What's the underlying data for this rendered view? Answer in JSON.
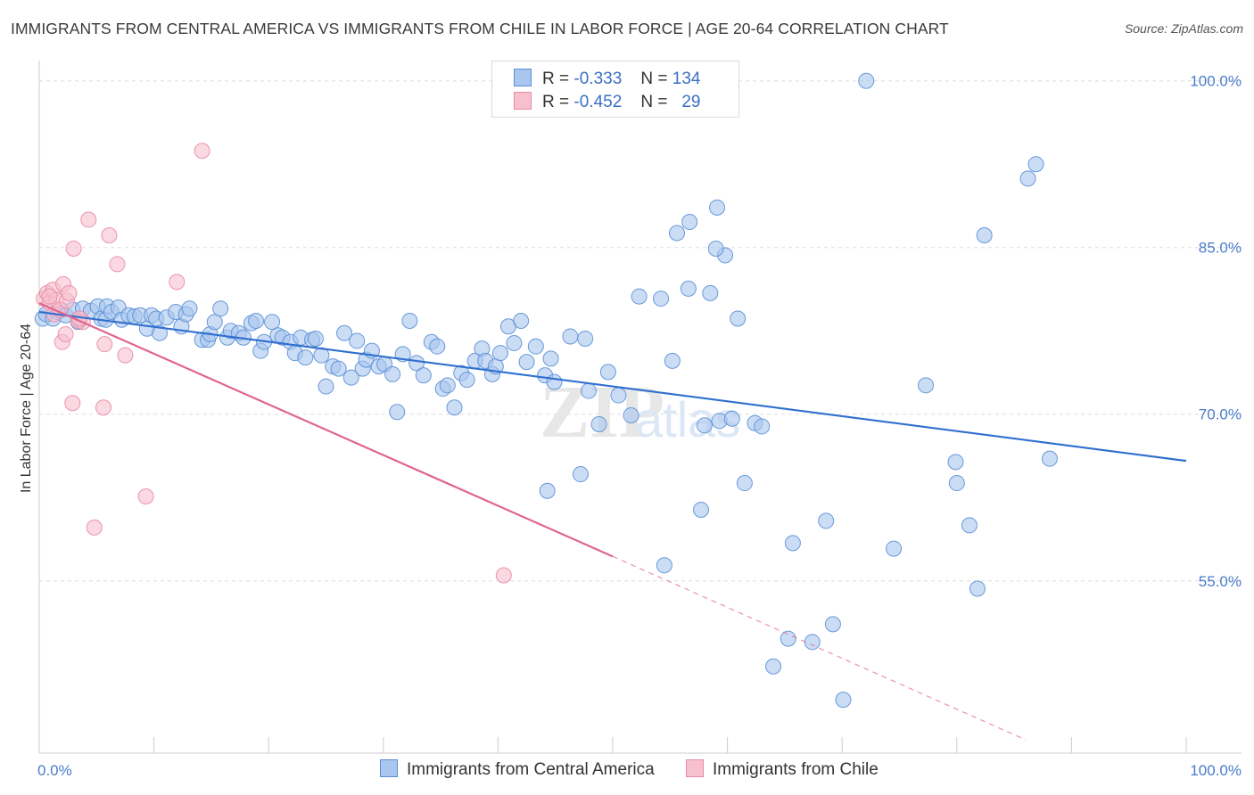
{
  "title": "IMMIGRANTS FROM CENTRAL AMERICA VS IMMIGRANTS FROM CHILE IN LABOR FORCE | AGE 20-64 CORRELATION CHART",
  "source": "Source: ZipAtlas.com",
  "watermark": "ZIPatlas",
  "legend_top": {
    "rows": [
      {
        "r_label": "R =",
        "r_value": "-0.333",
        "n_label": "N =",
        "n_value": "134",
        "color": "#a9c6ef",
        "stroke": "#5b8fd6"
      },
      {
        "r_label": "R =",
        "r_value": "-0.452",
        "n_label": "N =",
        "n_value": "29",
        "color": "#f7c0cf",
        "stroke": "#e88aa6"
      }
    ]
  },
  "legend_bottom": [
    {
      "label": "Immigrants from Central America",
      "color": "#a9c6ef",
      "stroke": "#5b8fd6"
    },
    {
      "label": "Immigrants from Chile",
      "color": "#f7c0cf",
      "stroke": "#e88aa6"
    }
  ],
  "chart_data": {
    "type": "scatter",
    "title": "IMMIGRANTS FROM CENTRAL AMERICA VS IMMIGRANTS FROM CHILE IN LABOR FORCE | AGE 20-64 CORRELATION CHART",
    "xlabel": "",
    "ylabel": "In Labor Force | Age 20-64",
    "xlim": [
      0,
      100
    ],
    "ylim": [
      39.5,
      101.5
    ],
    "x_tick_labels": [
      "0.0%",
      "100.0%"
    ],
    "y_ticks": [
      55,
      70,
      85,
      100
    ],
    "y_tick_labels": [
      "55.0%",
      "70.0%",
      "85.0%",
      "100.0%"
    ],
    "grid": true,
    "series": [
      {
        "name": "Immigrants from Central America",
        "color": "#a9c6ef",
        "stroke": "#5b8fd6",
        "trend": {
          "x": [
            0,
            100
          ],
          "y": [
            79.2,
            65.8
          ],
          "color": "#2f6fcf"
        },
        "points": [
          [
            0.3,
            78.6
          ],
          [
            0.6,
            79.0
          ],
          [
            1.2,
            78.6
          ],
          [
            1.6,
            79.2
          ],
          [
            1.9,
            79.4
          ],
          [
            2.3,
            78.9
          ],
          [
            2.9,
            79.4
          ],
          [
            3.4,
            78.3
          ],
          [
            3.8,
            79.5
          ],
          [
            4.5,
            79.3
          ],
          [
            5.1,
            79.7
          ],
          [
            5.4,
            78.6
          ],
          [
            5.8,
            78.5
          ],
          [
            5.9,
            79.7
          ],
          [
            6.3,
            79.2
          ],
          [
            6.9,
            79.6
          ],
          [
            7.2,
            78.5
          ],
          [
            7.8,
            78.9
          ],
          [
            8.3,
            78.8
          ],
          [
            8.8,
            78.9
          ],
          [
            9.4,
            77.7
          ],
          [
            9.8,
            78.9
          ],
          [
            10.2,
            78.6
          ],
          [
            10.5,
            77.3
          ],
          [
            11.1,
            78.7
          ],
          [
            11.9,
            79.2
          ],
          [
            12.4,
            77.9
          ],
          [
            12.8,
            79.0
          ],
          [
            13.1,
            79.5
          ],
          [
            14.2,
            76.7
          ],
          [
            14.7,
            76.7
          ],
          [
            14.9,
            77.2
          ],
          [
            15.3,
            78.3
          ],
          [
            15.8,
            79.5
          ],
          [
            16.4,
            76.9
          ],
          [
            16.7,
            77.5
          ],
          [
            17.4,
            77.3
          ],
          [
            17.8,
            76.9
          ],
          [
            18.5,
            78.2
          ],
          [
            18.9,
            78.4
          ],
          [
            19.3,
            75.7
          ],
          [
            19.6,
            76.5
          ],
          [
            20.3,
            78.3
          ],
          [
            20.8,
            77.1
          ],
          [
            21.2,
            76.9
          ],
          [
            21.9,
            76.5
          ],
          [
            22.3,
            75.5
          ],
          [
            22.8,
            76.9
          ],
          [
            23.2,
            75.1
          ],
          [
            23.8,
            76.7
          ],
          [
            24.1,
            76.8
          ],
          [
            24.6,
            75.3
          ],
          [
            25.0,
            72.5
          ],
          [
            25.6,
            74.3
          ],
          [
            26.1,
            74.1
          ],
          [
            26.6,
            77.3
          ],
          [
            27.2,
            73.3
          ],
          [
            27.7,
            76.6
          ],
          [
            28.2,
            74.1
          ],
          [
            28.5,
            74.9
          ],
          [
            29.0,
            75.7
          ],
          [
            29.6,
            74.3
          ],
          [
            30.1,
            74.5
          ],
          [
            30.8,
            73.6
          ],
          [
            31.2,
            70.2
          ],
          [
            31.7,
            75.4
          ],
          [
            32.3,
            78.4
          ],
          [
            32.9,
            74.6
          ],
          [
            33.5,
            73.5
          ],
          [
            34.2,
            76.5
          ],
          [
            34.7,
            76.1
          ],
          [
            35.2,
            72.3
          ],
          [
            35.6,
            72.6
          ],
          [
            36.2,
            70.6
          ],
          [
            36.8,
            73.7
          ],
          [
            37.3,
            73.1
          ],
          [
            38.0,
            74.8
          ],
          [
            38.6,
            75.9
          ],
          [
            38.9,
            74.8
          ],
          [
            39.5,
            73.6
          ],
          [
            39.8,
            74.3
          ],
          [
            40.2,
            75.5
          ],
          [
            40.9,
            77.9
          ],
          [
            41.4,
            76.4
          ],
          [
            42.0,
            78.4
          ],
          [
            42.5,
            74.7
          ],
          [
            43.3,
            76.1
          ],
          [
            44.1,
            73.5
          ],
          [
            44.6,
            75.0
          ],
          [
            44.9,
            72.9
          ],
          [
            46.3,
            77.0
          ],
          [
            47.6,
            76.8
          ],
          [
            47.9,
            72.1
          ],
          [
            48.8,
            69.1
          ],
          [
            49.6,
            73.8
          ],
          [
            50.5,
            71.7
          ],
          [
            51.6,
            69.9
          ],
          [
            52.3,
            80.6
          ],
          [
            54.2,
            80.4
          ],
          [
            54.5,
            56.4
          ],
          [
            55.6,
            86.3
          ],
          [
            56.6,
            81.3
          ],
          [
            57.7,
            61.4
          ],
          [
            58.0,
            69.0
          ],
          [
            59.3,
            69.4
          ],
          [
            59.8,
            84.3
          ],
          [
            60.4,
            69.6
          ],
          [
            61.5,
            63.8
          ],
          [
            62.4,
            69.2
          ],
          [
            63.0,
            68.9
          ],
          [
            64.0,
            47.3
          ],
          [
            65.3,
            49.8
          ],
          [
            65.7,
            58.4
          ],
          [
            67.4,
            49.5
          ],
          [
            68.6,
            60.4
          ],
          [
            69.2,
            51.1
          ],
          [
            70.1,
            44.3
          ],
          [
            72.1,
            100.0
          ],
          [
            74.5,
            57.9
          ],
          [
            77.3,
            72.6
          ],
          [
            79.9,
            65.7
          ],
          [
            80.0,
            63.8
          ],
          [
            81.1,
            60.0
          ],
          [
            81.8,
            54.3
          ],
          [
            82.4,
            86.1
          ],
          [
            86.2,
            91.2
          ],
          [
            86.9,
            92.5
          ],
          [
            88.1,
            66.0
          ],
          [
            47.2,
            64.6
          ],
          [
            44.3,
            63.1
          ],
          [
            56.7,
            87.3
          ],
          [
            55.2,
            74.8
          ],
          [
            58.5,
            80.9
          ],
          [
            60.9,
            78.6
          ],
          [
            59.1,
            88.6
          ],
          [
            59.0,
            84.9
          ]
        ]
      },
      {
        "name": "Immigrants from Chile",
        "color": "#f7c0cf",
        "stroke": "#e88aa6",
        "trend": {
          "x": [
            0,
            50
          ],
          "y": [
            80.0,
            57.2
          ],
          "color": "#e0658e",
          "dash_to": [
            86,
            40.7
          ]
        },
        "points": [
          [
            0.4,
            80.4
          ],
          [
            0.7,
            80.9
          ],
          [
            0.9,
            80.0
          ],
          [
            1.2,
            81.2
          ],
          [
            1.3,
            79.0
          ],
          [
            1.5,
            80.3
          ],
          [
            1.8,
            79.4
          ],
          [
            2.0,
            76.5
          ],
          [
            2.1,
            81.7
          ],
          [
            2.3,
            77.2
          ],
          [
            2.4,
            80.2
          ],
          [
            2.6,
            80.9
          ],
          [
            2.9,
            71.0
          ],
          [
            3.0,
            84.9
          ],
          [
            3.4,
            78.4
          ],
          [
            3.8,
            78.3
          ],
          [
            4.3,
            87.5
          ],
          [
            4.8,
            59.8
          ],
          [
            5.6,
            70.6
          ],
          [
            5.7,
            76.3
          ],
          [
            6.1,
            86.1
          ],
          [
            6.8,
            83.5
          ],
          [
            7.5,
            75.3
          ],
          [
            9.3,
            62.6
          ],
          [
            12.0,
            81.9
          ],
          [
            14.2,
            93.7
          ],
          [
            40.5,
            55.5
          ],
          [
            3.5,
            78.6
          ],
          [
            0.9,
            80.6
          ]
        ]
      }
    ]
  }
}
